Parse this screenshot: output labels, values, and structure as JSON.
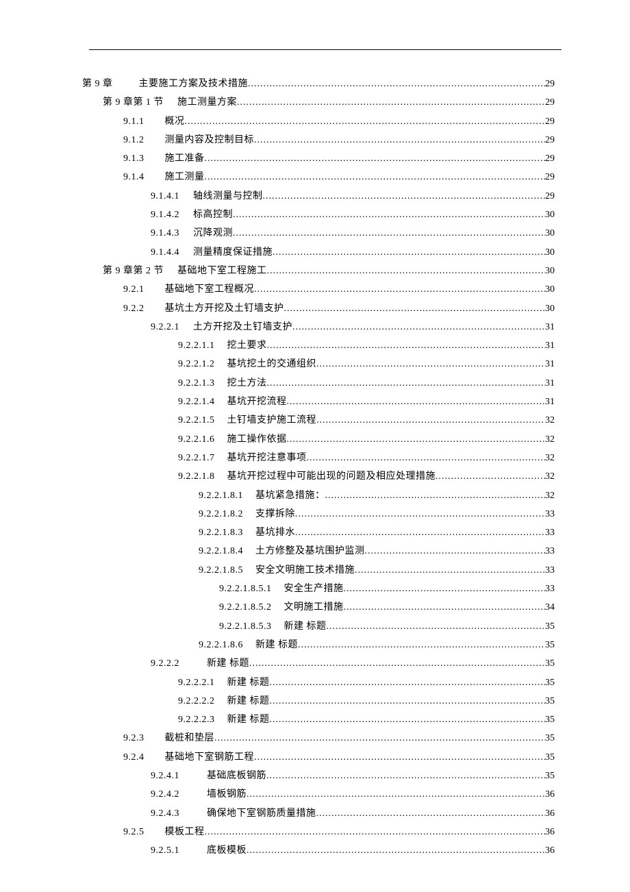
{
  "toc": [
    {
      "level": 0,
      "num": "第 9 章",
      "title": "主要施工方案及技术措施",
      "page": "29",
      "numClass": "num-l0"
    },
    {
      "level": 1,
      "num": "第 9 章第 1 节",
      "title": "施工测量方案",
      "page": "29",
      "numClass": "num-l1"
    },
    {
      "level": 2,
      "num": "9.1.1",
      "title": "概况",
      "page": "29",
      "numClass": "num-l2"
    },
    {
      "level": 2,
      "num": "9.1.2",
      "title": "测量内容及控制目标",
      "page": "29",
      "numClass": "num-l2"
    },
    {
      "level": 2,
      "num": "9.1.3",
      "title": "施工准备",
      "page": "29",
      "numClass": "num-l2"
    },
    {
      "level": 2,
      "num": "9.1.4",
      "title": "施工测量",
      "page": "29",
      "numClass": "num-l2"
    },
    {
      "level": 3,
      "num": "9.1.4.1",
      "title": "轴线测量与控制",
      "page": "29",
      "numClass": "num-l3"
    },
    {
      "level": 3,
      "num": "9.1.4.2",
      "title": "标高控制",
      "page": "30",
      "numClass": "num-l3"
    },
    {
      "level": 3,
      "num": "9.1.4.3",
      "title": "沉降观测",
      "page": "30",
      "numClass": "num-l3"
    },
    {
      "level": 3,
      "num": "9.1.4.4",
      "title": "测量精度保证措施",
      "page": "30",
      "numClass": "num-l3"
    },
    {
      "level": 1,
      "num": "第 9 章第 2 节",
      "title": "基础地下室工程施工",
      "page": "30",
      "numClass": "num-l1"
    },
    {
      "level": 2,
      "num": "9.2.1",
      "title": "基础地下室工程概况",
      "page": "30",
      "numClass": "num-l2"
    },
    {
      "level": 2,
      "num": "9.2.2",
      "title": "基坑土方开挖及土钉墙支护",
      "page": "30",
      "numClass": "num-l2"
    },
    {
      "level": 3,
      "num": "9.2.2.1",
      "title": "土方开挖及土钉墙支护",
      "page": "31",
      "numClass": "num-l3"
    },
    {
      "level": 4,
      "num": "9.2.2.1.1",
      "title": "挖土要求",
      "page": "31",
      "numClass": "num-l4"
    },
    {
      "level": 4,
      "num": "9.2.2.1.2",
      "title": "基坑挖土的交通组织",
      "page": "31",
      "numClass": "num-l4"
    },
    {
      "level": 4,
      "num": "9.2.2.1.3",
      "title": "挖土方法",
      "page": "31",
      "numClass": "num-l4"
    },
    {
      "level": 4,
      "num": "9.2.2.1.4",
      "title": "基坑开挖流程",
      "page": "31",
      "numClass": "num-l4"
    },
    {
      "level": 4,
      "num": "9.2.2.1.5",
      "title": "土钉墙支护施工流程",
      "page": "32",
      "numClass": "num-l4"
    },
    {
      "level": 4,
      "num": "9.2.2.1.6",
      "title": "施工操作依据",
      "page": "32",
      "numClass": "num-l4"
    },
    {
      "level": 4,
      "num": "9.2.2.1.7",
      "title": "基坑开挖注意事项",
      "page": "32",
      "numClass": "num-l4"
    },
    {
      "level": 4,
      "num": "9.2.2.1.8",
      "title": "基坑开挖过程中可能出现的问题及相应处理措施",
      "page": "32",
      "numClass": "num-l4"
    },
    {
      "level": 5,
      "num": "9.2.2.1.8.1",
      "title": "基坑紧急措施：",
      "page": "32",
      "numClass": "num-l5"
    },
    {
      "level": 5,
      "num": "9.2.2.1.8.2",
      "title": "支撑拆除",
      "page": "33",
      "numClass": "num-l5"
    },
    {
      "level": 5,
      "num": "9.2.2.1.8.3",
      "title": "基坑排水",
      "page": "33",
      "numClass": "num-l5"
    },
    {
      "level": 5,
      "num": "9.2.2.1.8.4",
      "title": "土方修整及基坑围护监测",
      "page": "33",
      "numClass": "num-l5"
    },
    {
      "level": 5,
      "num": "9.2.2.1.8.5",
      "title": "安全文明施工技术措施",
      "page": "33",
      "numClass": "num-l5"
    },
    {
      "level": 6,
      "num": "9.2.2.1.8.5.1",
      "title": "安全生产措施",
      "page": "33",
      "numClass": "num-l6"
    },
    {
      "level": 6,
      "num": "9.2.2.1.8.5.2",
      "title": "文明施工措施",
      "page": "34",
      "numClass": "num-l6"
    },
    {
      "level": 6,
      "num": "9.2.2.1.8.5.3",
      "title": "新建  标题",
      "page": "35",
      "numClass": "num-l6"
    },
    {
      "level": 5,
      "num": "9.2.2.1.8.6",
      "title": "新建  标题",
      "page": "35",
      "numClass": "num-l5"
    },
    {
      "level": 3,
      "num": "9.2.2.2",
      "title": "新建  标题",
      "page": "35",
      "numClass": "num-l3b"
    },
    {
      "level": 4,
      "num": "9.2.2.2.1",
      "title": "新建  标题",
      "page": "35",
      "numClass": "num-l4"
    },
    {
      "level": 4,
      "num": "9.2.2.2.2",
      "title": "新建  标题",
      "page": "35",
      "numClass": "num-l4"
    },
    {
      "level": 4,
      "num": "9.2.2.2.3",
      "title": "新建  标题",
      "page": "35",
      "numClass": "num-l4"
    },
    {
      "level": 2,
      "num": "9.2.3",
      "title": "截桩和垫层",
      "page": "35",
      "numClass": "num-l2"
    },
    {
      "level": 2,
      "num": "9.2.4",
      "title": "基础地下室钢筋工程",
      "page": "35",
      "numClass": "num-l2"
    },
    {
      "level": 3,
      "num": "9.2.4.1",
      "title": "基础底板钢筋",
      "page": "35",
      "numClass": "num-l3b"
    },
    {
      "level": 3,
      "num": "9.2.4.2",
      "title": "墙板钢筋",
      "page": "36",
      "numClass": "num-l3b"
    },
    {
      "level": 3,
      "num": "9.2.4.3",
      "title": "确保地下室钢筋质量措施",
      "page": "36",
      "numClass": "num-l3b"
    },
    {
      "level": 2,
      "num": "9.2.5",
      "title": "模板工程",
      "page": "36",
      "numClass": "num-l2"
    },
    {
      "level": 3,
      "num": "9.2.5.1",
      "title": "底板模板",
      "page": "36",
      "numClass": "num-l3b"
    }
  ]
}
